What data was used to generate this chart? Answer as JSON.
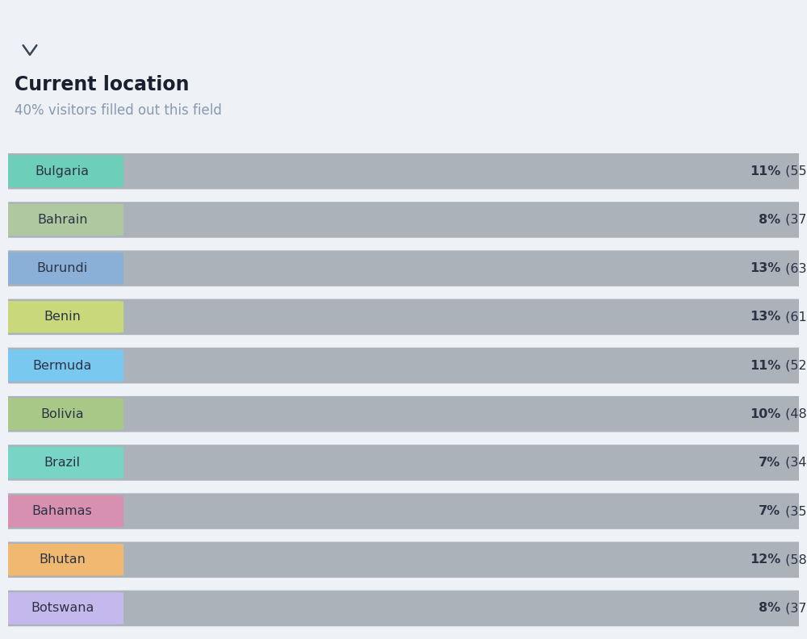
{
  "title": "Current location",
  "subtitle": "40% visitors filled out this field",
  "background_color": "#eef1f5",
  "categories": [
    "Bulgaria",
    "Bahrain",
    "Burundi",
    "Benin",
    "Bermuda",
    "Bolivia",
    "Brazil",
    "Bahamas",
    "Bhutan",
    "Botswana"
  ],
  "percentages": [
    11,
    8,
    13,
    13,
    11,
    10,
    7,
    7,
    12,
    8
  ],
  "counts": [
    55,
    37,
    63,
    61,
    52,
    48,
    34,
    35,
    58,
    37
  ],
  "label_colors": [
    "#6dcfba",
    "#b0c8a0",
    "#8ab0d8",
    "#c8d87a",
    "#78c8f0",
    "#a8c888",
    "#78d4c4",
    "#d890b0",
    "#f0b870",
    "#c4b8ec"
  ],
  "bar_color": "#9da5ae",
  "label_text_color": "#2c3345",
  "value_text_bold_color": "#2c3345",
  "value_text_light_color": "#2c3345",
  "title_color": "#1a2030",
  "subtitle_color": "#8899b0",
  "title_fontsize": 17,
  "subtitle_fontsize": 12,
  "bar_label_fontsize": 11.5,
  "value_fontsize": 11.5
}
